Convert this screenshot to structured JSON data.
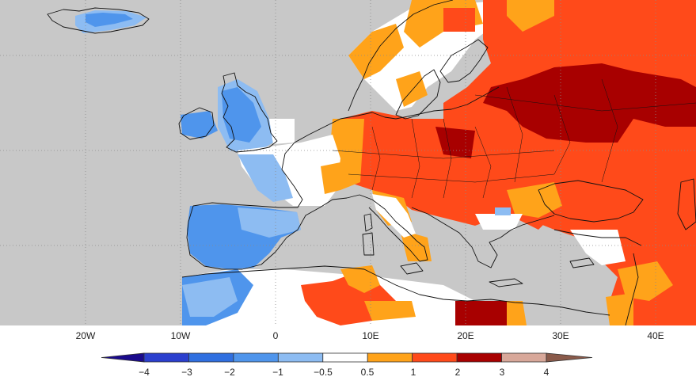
{
  "map": {
    "background_color": "#c8c8c8",
    "ocean_color": "#c8c8c8",
    "graticule_color": "#8a8a8a",
    "coastline_color": "#111111",
    "longitude_labels": [
      "20W",
      "10W",
      "0",
      "10E",
      "20E",
      "30E",
      "40E"
    ]
  },
  "legend": {
    "type": "colorbar",
    "labels": [
      "-4",
      "-3",
      "-2",
      "-1",
      "-0.5",
      "0.5",
      "1",
      "2",
      "3",
      "4"
    ],
    "colors": [
      "#1a0a8c",
      "#2b3fce",
      "#2f6fe0",
      "#4f95ec",
      "#8dbcf2",
      "#ffffff",
      "#ffa31a",
      "#ff4a1a",
      "#a80000",
      "#d8a89a",
      "#8a5a4a"
    ]
  },
  "anomaly_regions": [
    {
      "name": "iceland-cool",
      "color": "#8dbcf2"
    },
    {
      "name": "british-isles-cool",
      "color": "#4f95ec"
    },
    {
      "name": "iberia-cool",
      "color": "#4f95ec"
    },
    {
      "name": "central-europe-warm",
      "color": "#ff4a1a"
    },
    {
      "name": "eastern-europe-very-warm",
      "color": "#a80000"
    },
    {
      "name": "scandinavia-warm",
      "color": "#ffa31a"
    },
    {
      "name": "north-africa-warm",
      "color": "#ff4a1a"
    }
  ]
}
